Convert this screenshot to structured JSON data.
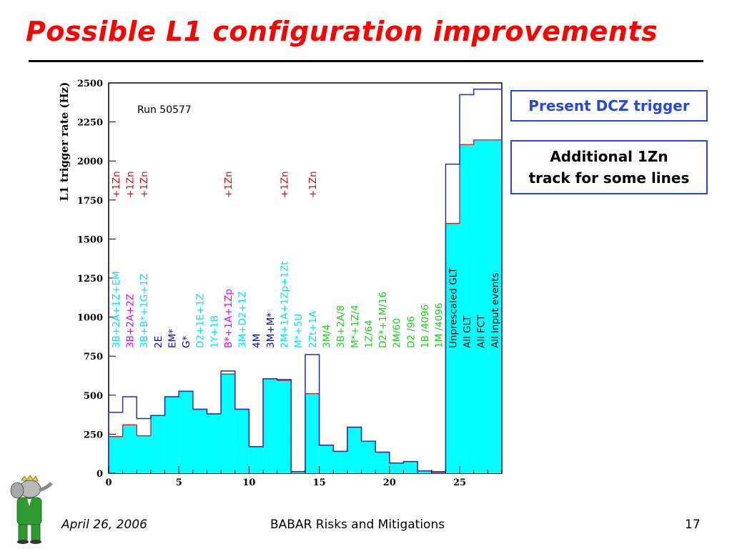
{
  "slide": {
    "title": "Possible L1 configuration improvements",
    "callout_present": "Present DCZ trigger",
    "callout_additional_line1": "Additional 1Zn",
    "callout_additional_line2": "track for some lines",
    "footer_date": "April 26, 2006",
    "footer_center": "BABAR Risks and Mitigations",
    "footer_page": "17",
    "title_color": "#ff0000",
    "callout_border_color": "#2a47d6"
  },
  "chart_data": {
    "type": "bar",
    "ylabel": "L1 trigger rate (Hz)",
    "annotation": "Run 50577",
    "xlim": [
      0,
      28
    ],
    "ylim": [
      0,
      2500
    ],
    "x_ticks": [
      0,
      5,
      10,
      15,
      20,
      25
    ],
    "y_ticks": [
      0,
      250,
      500,
      750,
      1000,
      1250,
      1500,
      1750,
      2000,
      2250,
      2500
    ],
    "series": [
      {
        "name": "Present DCZ trigger",
        "style": "outline",
        "color": "#1f2fbf",
        "values": [
          390,
          490,
          350,
          370,
          490,
          525,
          410,
          380,
          655,
          410,
          170,
          605,
          600,
          10,
          760,
          180,
          140,
          295,
          205,
          135,
          65,
          75,
          15,
          10,
          1980,
          2425,
          2460,
          2460
        ]
      },
      {
        "name": "Additional 1Zn track for some lines",
        "style": "filled",
        "color": "#00ffff",
        "edge": "#c82020",
        "values": [
          235,
          310,
          240,
          370,
          490,
          525,
          410,
          380,
          635,
          410,
          170,
          605,
          595,
          10,
          510,
          180,
          140,
          295,
          205,
          135,
          65,
          75,
          15,
          5,
          1600,
          2105,
          2135,
          2135
        ]
      }
    ],
    "bin_labels": [
      {
        "bin": 0,
        "text": "3B+2A+1Z+EM",
        "color": "#00e5e5"
      },
      {
        "bin": 1,
        "text": "3B+2A+2Z",
        "color": "#e600e6"
      },
      {
        "bin": 2,
        "text": "3B+B*+1G+1Z",
        "color": "#00e5e5"
      },
      {
        "bin": 3,
        "text": "2E",
        "color": "#0000cc"
      },
      {
        "bin": 4,
        "text": "EM*",
        "color": "#0000cc"
      },
      {
        "bin": 5,
        "text": "G*",
        "color": "#0000cc"
      },
      {
        "bin": 6,
        "text": "D2+1E+1Z",
        "color": "#00e5e5"
      },
      {
        "bin": 7,
        "text": "1Y+1B",
        "color": "#00e5e5"
      },
      {
        "bin": 8,
        "text": "B*+1A+1Zp",
        "color": "#e600e6"
      },
      {
        "bin": 9,
        "text": "3M+D2+1Z",
        "color": "#00e5e5"
      },
      {
        "bin": 10,
        "text": "4M",
        "color": "#0000cc"
      },
      {
        "bin": 11,
        "text": "3M+M*",
        "color": "#0000cc"
      },
      {
        "bin": 12,
        "text": "2M+1A+1Zp+1Zt",
        "color": "#00e5e5"
      },
      {
        "bin": 13,
        "text": "M*+5U",
        "color": "#00e5e5"
      },
      {
        "bin": 14,
        "text": "2Zt+1A",
        "color": "#00e5e5"
      },
      {
        "bin": 15,
        "text": "3M/4",
        "color": "#22cc22"
      },
      {
        "bin": 16,
        "text": "3B+2A/8",
        "color": "#22cc22"
      },
      {
        "bin": 17,
        "text": "M*+1Z/4",
        "color": "#22cc22"
      },
      {
        "bin": 18,
        "text": "1Z/64",
        "color": "#22cc22"
      },
      {
        "bin": 19,
        "text": "D2*+1M/16",
        "color": "#22cc22"
      },
      {
        "bin": 20,
        "text": "2M/60",
        "color": "#22cc22"
      },
      {
        "bin": 21,
        "text": "D2 /96",
        "color": "#22cc22"
      },
      {
        "bin": 22,
        "text": "1B /4096",
        "color": "#22cc22"
      },
      {
        "bin": 23,
        "text": "1M /4096",
        "color": "#22cc22"
      },
      {
        "bin": 24,
        "text": "Unprescaled GLT",
        "color": "#000000"
      },
      {
        "bin": 25,
        "text": "All GLT",
        "color": "#000000"
      },
      {
        "bin": 26,
        "text": "All FCT",
        "color": "#000000"
      },
      {
        "bin": 27,
        "text": "All input events",
        "color": "#000000"
      }
    ],
    "zn_labels": [
      {
        "bin": 0,
        "text": "+1Zn",
        "color": "#e60000"
      },
      {
        "bin": 1,
        "text": "+1Zn",
        "color": "#e60000"
      },
      {
        "bin": 2,
        "text": "+1Zn",
        "color": "#e60000"
      },
      {
        "bin": 8,
        "text": "+1Zn",
        "color": "#e60000"
      },
      {
        "bin": 12,
        "text": "+1Zn",
        "color": "#e60000"
      },
      {
        "bin": 14,
        "text": "+1Zn",
        "color": "#e60000"
      }
    ]
  }
}
